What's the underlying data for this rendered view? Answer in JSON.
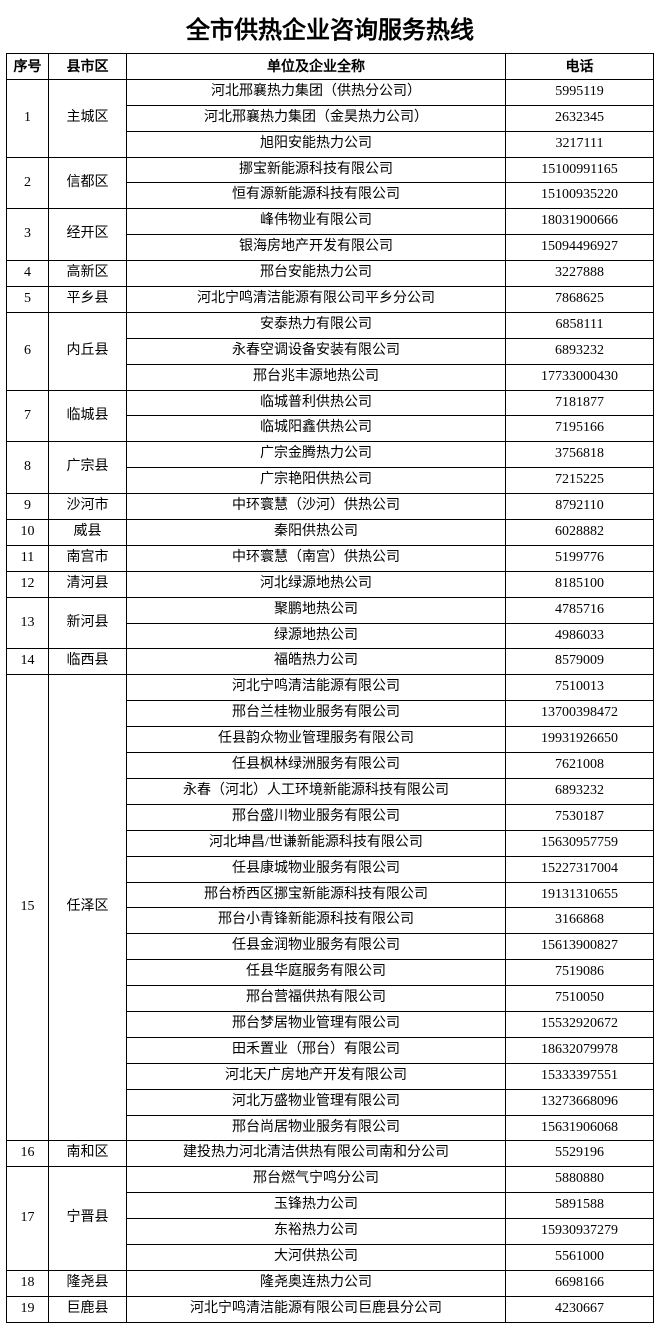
{
  "title": "全市供热企业咨询服务热线",
  "headers": {
    "idx": "序号",
    "district": "县市区",
    "company": "单位及企业全称",
    "phone": "电话"
  },
  "groups": [
    {
      "idx": "1",
      "district": "主城区",
      "rows": [
        {
          "company": "河北邢襄热力集团（供热分公司）",
          "phone": "5995119"
        },
        {
          "company": "河北邢襄热力集团（金昊热力公司）",
          "phone": "2632345"
        },
        {
          "company": "旭阳安能热力公司",
          "phone": "3217111"
        }
      ]
    },
    {
      "idx": "2",
      "district": "信都区",
      "rows": [
        {
          "company": "挪宝新能源科技有限公司",
          "phone": "15100991165"
        },
        {
          "company": "恒有源新能源科技有限公司",
          "phone": "15100935220"
        }
      ]
    },
    {
      "idx": "3",
      "district": "经开区",
      "rows": [
        {
          "company": "峰伟物业有限公司",
          "phone": "18031900666"
        },
        {
          "company": "银海房地产开发有限公司",
          "phone": "15094496927"
        }
      ]
    },
    {
      "idx": "4",
      "district": "高新区",
      "rows": [
        {
          "company": "邢台安能热力公司",
          "phone": "3227888"
        }
      ]
    },
    {
      "idx": "5",
      "district": "平乡县",
      "rows": [
        {
          "company": "河北宁鸣清洁能源有限公司平乡分公司",
          "phone": "7868625"
        }
      ]
    },
    {
      "idx": "6",
      "district": "内丘县",
      "rows": [
        {
          "company": "安泰热力有限公司",
          "phone": "6858111"
        },
        {
          "company": "永春空调设备安装有限公司",
          "phone": "6893232"
        },
        {
          "company": "邢台兆丰源地热公司",
          "phone": "17733000430"
        }
      ]
    },
    {
      "idx": "7",
      "district": "临城县",
      "rows": [
        {
          "company": "临城普利供热公司",
          "phone": "7181877"
        },
        {
          "company": "临城阳鑫供热公司",
          "phone": "7195166"
        }
      ]
    },
    {
      "idx": "8",
      "district": "广宗县",
      "rows": [
        {
          "company": "广宗金腾热力公司",
          "phone": "3756818"
        },
        {
          "company": "广宗艳阳供热公司",
          "phone": "7215225"
        }
      ]
    },
    {
      "idx": "9",
      "district": "沙河市",
      "rows": [
        {
          "company": "中环寰慧（沙河）供热公司",
          "phone": "8792110"
        }
      ]
    },
    {
      "idx": "10",
      "district": "威县",
      "rows": [
        {
          "company": "秦阳供热公司",
          "phone": "6028882"
        }
      ]
    },
    {
      "idx": "11",
      "district": "南宫市",
      "rows": [
        {
          "company": "中环寰慧（南宫）供热公司",
          "phone": "5199776"
        }
      ]
    },
    {
      "idx": "12",
      "district": "清河县",
      "rows": [
        {
          "company": "河北绿源地热公司",
          "phone": "8185100"
        }
      ]
    },
    {
      "idx": "13",
      "district": "新河县",
      "rows": [
        {
          "company": "聚鹏地热公司",
          "phone": "4785716"
        },
        {
          "company": "绿源地热公司",
          "phone": "4986033"
        }
      ]
    },
    {
      "idx": "14",
      "district": "临西县",
      "rows": [
        {
          "company": "福皓热力公司",
          "phone": "8579009"
        }
      ]
    },
    {
      "idx": "15",
      "district": "任泽区",
      "rows": [
        {
          "company": "河北宁鸣清洁能源有限公司",
          "phone": "7510013"
        },
        {
          "company": "邢台兰桂物业服务有限公司",
          "phone": "13700398472"
        },
        {
          "company": "任县韵众物业管理服务有限公司",
          "phone": "19931926650"
        },
        {
          "company": "任县枫林绿洲服务有限公司",
          "phone": "7621008"
        },
        {
          "company": "永春（河北）人工环境新能源科技有限公司",
          "phone": "6893232"
        },
        {
          "company": "邢台盛川物业服务有限公司",
          "phone": "7530187"
        },
        {
          "company": "河北坤昌/世谦新能源科技有限公司",
          "phone": "15630957759"
        },
        {
          "company": "任县康城物业服务有限公司",
          "phone": "15227317004"
        },
        {
          "company": "邢台桥西区挪宝新能源科技有限公司",
          "phone": "19131310655"
        },
        {
          "company": "邢台小青锋新能源科技有限公司",
          "phone": "3166868"
        },
        {
          "company": "任县金润物业服务有限公司",
          "phone": "15613900827"
        },
        {
          "company": "任县华庭服务有限公司",
          "phone": "7519086"
        },
        {
          "company": "邢台营福供热有限公司",
          "phone": "7510050"
        },
        {
          "company": "邢台梦居物业管理有限公司",
          "phone": "15532920672"
        },
        {
          "company": "田禾置业（邢台）有限公司",
          "phone": "18632079978"
        },
        {
          "company": "河北天广房地产开发有限公司",
          "phone": "15333397551"
        },
        {
          "company": "河北万盛物业管理有限公司",
          "phone": "13273668096"
        },
        {
          "company": "邢台尚居物业服务有限公司",
          "phone": "15631906068"
        }
      ]
    },
    {
      "idx": "16",
      "district": "南和区",
      "rows": [
        {
          "company": "建投热力河北清洁供热有限公司南和分公司",
          "phone": "5529196"
        }
      ]
    },
    {
      "idx": "17",
      "district": "宁晋县",
      "rows": [
        {
          "company": "邢台燃气宁鸣分公司",
          "phone": "5880880"
        },
        {
          "company": "玉锋热力公司",
          "phone": "5891588"
        },
        {
          "company": "东裕热力公司",
          "phone": "15930937279"
        },
        {
          "company": "大河供热公司",
          "phone": "5561000"
        }
      ]
    },
    {
      "idx": "18",
      "district": "隆尧县",
      "rows": [
        {
          "company": "隆尧奥连热力公司",
          "phone": "6698166"
        }
      ]
    },
    {
      "idx": "19",
      "district": "巨鹿县",
      "rows": [
        {
          "company": "河北宁鸣清洁能源有限公司巨鹿县分公司",
          "phone": "4230667"
        }
      ]
    }
  ]
}
